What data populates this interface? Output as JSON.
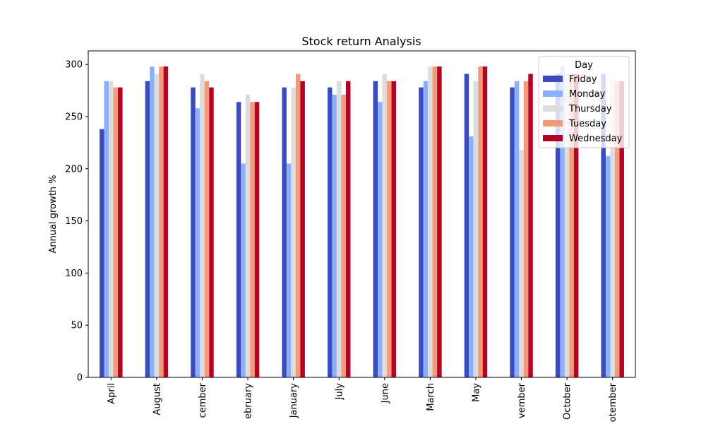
{
  "chart_data": {
    "type": "bar",
    "title": "Stock return Analysis",
    "xlabel": "",
    "ylabel": "Annual growth %",
    "ylim": [
      0,
      313
    ],
    "yticks": [
      0,
      50,
      100,
      150,
      200,
      250,
      300
    ],
    "grid": false,
    "legend_title": "Day",
    "legend_placement": "top-right",
    "categories": [
      "April",
      "August",
      "cember",
      "ebruary",
      "January",
      "July",
      "June",
      "March",
      "May",
      "vember",
      "October",
      "otember"
    ],
    "series": [
      {
        "name": "Friday",
        "color": "#3b4cc0",
        "values": [
          238,
          284,
          278,
          264,
          278,
          278,
          284,
          278,
          291,
          278,
          291,
          291
        ]
      },
      {
        "name": "Monday",
        "color": "#8db0fe",
        "values": [
          284,
          298,
          258,
          205,
          205,
          271,
          264,
          284,
          231,
          284,
          298,
          212
        ]
      },
      {
        "name": "Thursday",
        "color": "#dddddd",
        "values": [
          284,
          291,
          291,
          271,
          278,
          284,
          291,
          298,
          284,
          218,
          291,
          284
        ]
      },
      {
        "name": "Tuesday",
        "color": "#f49a7b",
        "values": [
          278,
          298,
          284,
          264,
          291,
          271,
          284,
          298,
          298,
          284,
          291,
          284
        ]
      },
      {
        "name": "Wednesday",
        "color": "#b40426",
        "values": [
          278,
          298,
          278,
          264,
          284,
          284,
          284,
          298,
          298,
          291,
          291,
          284
        ]
      }
    ]
  }
}
